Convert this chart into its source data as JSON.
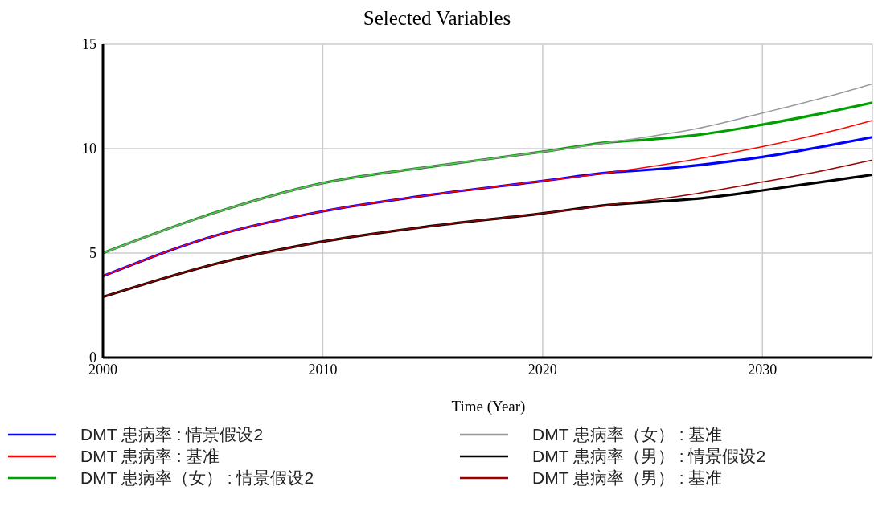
{
  "chart_data": {
    "type": "line",
    "title": "Selected Variables",
    "xlabel": "Time (Year)",
    "x": [
      2000,
      2005,
      2010,
      2015,
      2020,
      2023,
      2025,
      2027,
      2030,
      2033,
      2035
    ],
    "xlim": [
      2000,
      2035
    ],
    "xticks": [
      2000,
      2010,
      2020,
      2030
    ],
    "ylim": [
      0,
      15
    ],
    "yticks": [
      0,
      5,
      10,
      15
    ],
    "grid": true,
    "legend": "bottom",
    "marker": "none",
    "line_style": "solid",
    "series": [
      {
        "name": "DMT 患病率 : 情景假设2",
        "color": "#0000ff",
        "values": [
          3.9,
          5.8,
          7.0,
          7.8,
          8.45,
          8.85,
          9.0,
          9.2,
          9.6,
          10.15,
          10.55
        ]
      },
      {
        "name": "DMT 患病率 : 基准",
        "color": "#ff0000",
        "values": [
          3.9,
          5.8,
          7.0,
          7.8,
          8.45,
          8.85,
          9.15,
          9.5,
          10.1,
          10.8,
          11.35
        ]
      },
      {
        "name": "DMT 患病率（女） : 情景假设2",
        "color": "#00a000",
        "values": [
          5.0,
          6.9,
          8.35,
          9.15,
          9.85,
          10.3,
          10.45,
          10.65,
          11.15,
          11.75,
          12.2
        ]
      },
      {
        "name": "DMT 患病率（女） : 基准",
        "color": "#999999",
        "values": [
          5.0,
          6.9,
          8.35,
          9.15,
          9.85,
          10.3,
          10.6,
          10.95,
          11.7,
          12.5,
          13.1
        ]
      },
      {
        "name": "DMT 患病率（男） : 情景假设2",
        "color": "#000000",
        "values": [
          2.9,
          4.45,
          5.55,
          6.3,
          6.9,
          7.3,
          7.45,
          7.6,
          8.0,
          8.45,
          8.75
        ]
      },
      {
        "name": "DMT 患病率（男） : 基准",
        "color": "#990000",
        "values": [
          2.9,
          4.45,
          5.55,
          6.3,
          6.9,
          7.3,
          7.55,
          7.85,
          8.4,
          9.0,
          9.45
        ]
      }
    ]
  }
}
